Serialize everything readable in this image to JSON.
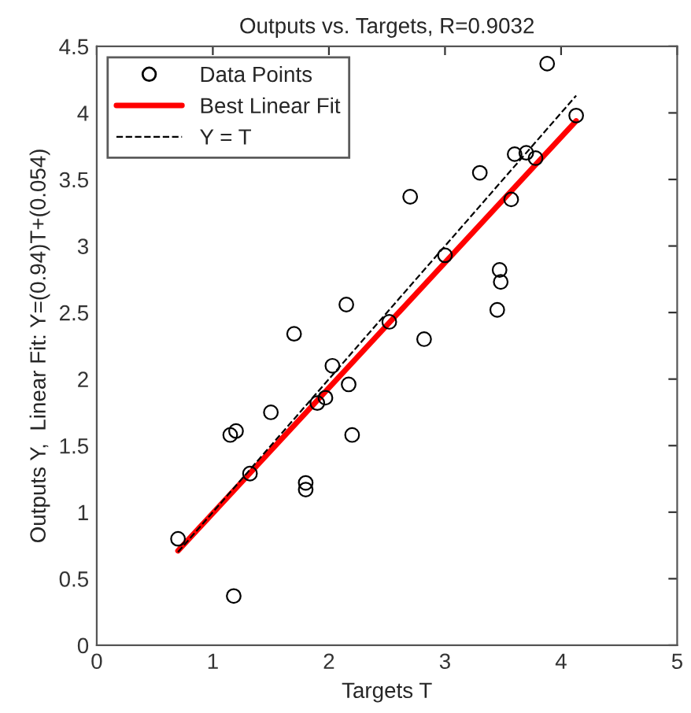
{
  "chart_data": {
    "type": "scatter",
    "title": "Outputs vs. Targets, R=0.9032",
    "xlabel": "Targets T",
    "ylabel": "Outputs Y,  Linear Fit: Y=(0.94)T+(0.054)",
    "xlim": [
      0,
      5
    ],
    "ylim": [
      0,
      4.5
    ],
    "xticks": [
      0,
      1,
      2,
      3,
      4,
      5
    ],
    "yticks": [
      0,
      0.5,
      1,
      1.5,
      2,
      2.5,
      3,
      3.5,
      4,
      4.5
    ],
    "grid": false,
    "legend": "top left",
    "series": [
      {
        "name": "Data Points",
        "color": "#000000",
        "marker": "circle",
        "x": [
          0.7,
          1.18,
          1.15,
          1.2,
          1.32,
          1.5,
          1.7,
          1.8,
          1.8,
          1.9,
          1.97,
          2.03,
          2.15,
          2.17,
          2.2,
          2.52,
          2.7,
          2.82,
          3.0,
          3.3,
          3.45,
          3.47,
          3.48,
          3.57,
          3.6,
          3.7,
          3.78,
          3.88,
          4.13
        ],
        "values": [
          0.8,
          0.37,
          1.58,
          1.61,
          1.29,
          1.75,
          2.34,
          1.22,
          1.17,
          1.82,
          1.86,
          2.1,
          2.56,
          1.96,
          1.58,
          2.43,
          3.37,
          2.3,
          2.93,
          3.55,
          2.52,
          2.82,
          2.73,
          3.35,
          3.69,
          3.7,
          3.66,
          4.37,
          3.98
        ]
      },
      {
        "name": "Best Linear Fit",
        "type": "line",
        "color": "#ff0000",
        "line_style": "solid",
        "x": [
          0.7,
          4.13
        ],
        "values": [
          0.71,
          3.94
        ]
      },
      {
        "name": "Y = T",
        "type": "line",
        "color": "#000000",
        "line_style": "dashed",
        "x": [
          0.7,
          4.13
        ],
        "values": [
          0.7,
          4.13
        ]
      }
    ]
  }
}
